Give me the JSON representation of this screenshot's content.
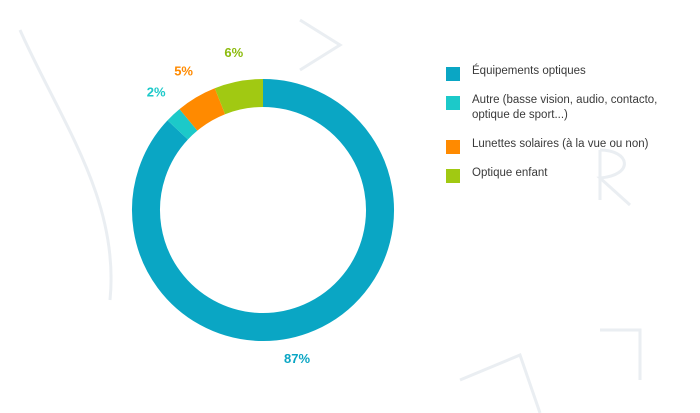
{
  "chart_data": {
    "type": "pie",
    "donut": true,
    "categories": [
      "Équipements optiques",
      "Autre (basse vision, audio, contacto, optique de sport...)",
      "Lunettes solaires (à la vue ou non)",
      "Optique enfant"
    ],
    "values": [
      87,
      2,
      5,
      6
    ],
    "value_labels": [
      "87%",
      "2%",
      "5%",
      "6%"
    ],
    "colors": [
      "#0aa6c4",
      "#1cc9c9",
      "#ff8a00",
      "#a1c912"
    ],
    "label_colors": [
      "#0aa6c4",
      "#1cc9c9",
      "#ff8a00",
      "#8cbb0c"
    ],
    "start_angle_deg": 0,
    "direction": "clockwise",
    "legend_position": "right",
    "title": ""
  },
  "legend": {
    "items": [
      {
        "label": "Équipements optiques",
        "color": "#0aa6c4"
      },
      {
        "label": "Autre (basse vision, audio, contacto, optique de sport...)",
        "color": "#1cc9c9"
      },
      {
        "label": "Lunettes solaires (à la vue ou non)",
        "color": "#ff8a00"
      },
      {
        "label": "Optique enfant",
        "color": "#a1c912"
      }
    ]
  }
}
